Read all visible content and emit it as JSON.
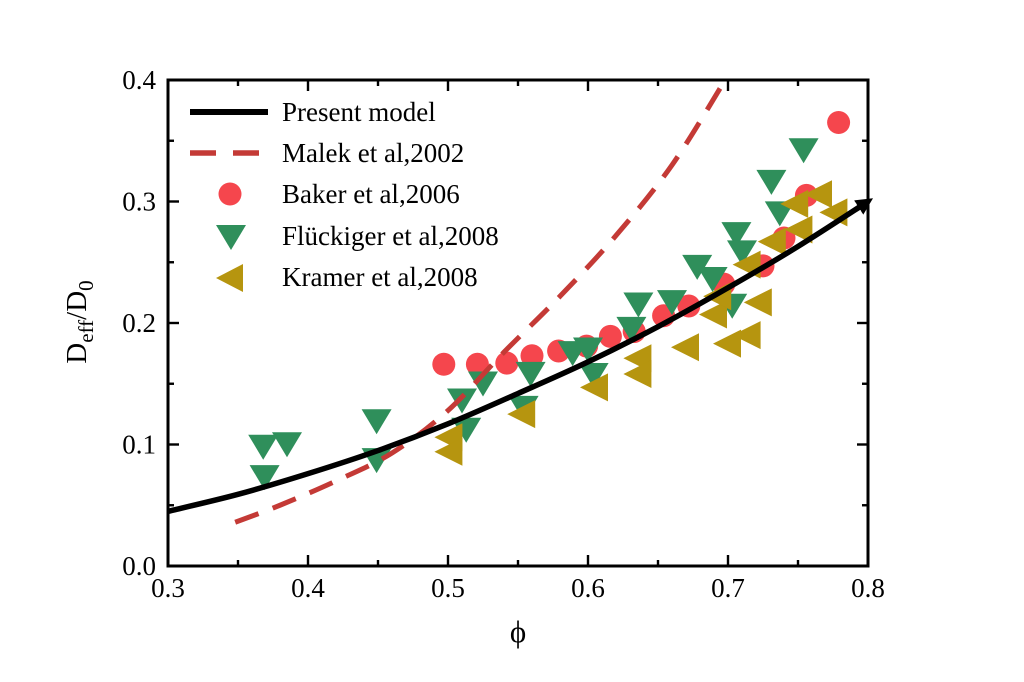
{
  "figure": {
    "background": "#ffffff",
    "frame_color": "#000000"
  },
  "axes": {
    "x": {
      "label": "ϕ",
      "min": 0.3,
      "max": 0.8,
      "major_ticks": [
        0.3,
        0.4,
        0.5,
        0.6,
        0.7,
        0.8
      ],
      "minor_ticks": [
        0.35,
        0.45,
        0.55,
        0.65,
        0.75
      ],
      "tick_labels": [
        "0.3",
        "0.4",
        "0.5",
        "0.6",
        "0.7",
        "0.8"
      ]
    },
    "y": {
      "label_parts": {
        "main1": "D",
        "sub1": "eff",
        "main2": "/D",
        "sub2": "0"
      },
      "min": 0.0,
      "max": 0.4,
      "major_ticks": [
        0.0,
        0.1,
        0.2,
        0.3,
        0.4
      ],
      "minor_ticks": [
        0.05,
        0.15,
        0.25,
        0.35
      ],
      "tick_labels": [
        "0.0",
        "0.1",
        "0.2",
        "0.3",
        "0.4"
      ]
    }
  },
  "legend": {
    "items": [
      {
        "label": "Present model",
        "marker": "solid-line"
      },
      {
        "label": "Malek et al,2002",
        "marker": "dashed-line"
      },
      {
        "label": "Baker et al,2006",
        "marker": "circle"
      },
      {
        "label": "Flückiger et al,2008",
        "marker": "triangle-down"
      },
      {
        "label": "Kramer et al,2008",
        "marker": "triangle-left"
      }
    ]
  },
  "chart_data": {
    "type": "line",
    "title": "",
    "xlabel": "ϕ",
    "ylabel": "Deff/D0",
    "xlim": [
      0.3,
      0.8
    ],
    "ylim": [
      0.0,
      0.4
    ],
    "grid": false,
    "legend_position": "upper-left-inside",
    "series": [
      {
        "name": "Present model",
        "style": "line",
        "color": "#000000",
        "line_width": 5.5,
        "arrow_end": true,
        "points": [
          [
            0.3,
            0.045
          ],
          [
            0.35,
            0.059
          ],
          [
            0.4,
            0.076
          ],
          [
            0.45,
            0.095
          ],
          [
            0.5,
            0.117
          ],
          [
            0.55,
            0.142
          ],
          [
            0.6,
            0.168
          ],
          [
            0.65,
            0.197
          ],
          [
            0.7,
            0.229
          ],
          [
            0.75,
            0.263
          ],
          [
            0.8,
            0.3
          ]
        ]
      },
      {
        "name": "Malek et al,2002",
        "style": "dashed-line",
        "color": "#c43a36",
        "line_width": 5,
        "dash": "25 15",
        "points": [
          [
            0.348,
            0.036
          ],
          [
            0.38,
            0.05
          ],
          [
            0.42,
            0.07
          ],
          [
            0.46,
            0.093
          ],
          [
            0.5,
            0.128
          ],
          [
            0.54,
            0.176
          ],
          [
            0.58,
            0.222
          ],
          [
            0.62,
            0.272
          ],
          [
            0.66,
            0.33
          ],
          [
            0.698,
            0.4
          ]
        ]
      },
      {
        "name": "Baker et al,2006",
        "style": "scatter-circle",
        "color": "#f5464d",
        "marker_size": 23,
        "points": [
          [
            0.497,
            0.166
          ],
          [
            0.521,
            0.166
          ],
          [
            0.542,
            0.167
          ],
          [
            0.56,
            0.173
          ],
          [
            0.579,
            0.177
          ],
          [
            0.599,
            0.181
          ],
          [
            0.616,
            0.189
          ],
          [
            0.633,
            0.193
          ],
          [
            0.654,
            0.206
          ],
          [
            0.672,
            0.214
          ],
          [
            0.697,
            0.232
          ],
          [
            0.725,
            0.247
          ],
          [
            0.74,
            0.27
          ],
          [
            0.756,
            0.305
          ],
          [
            0.779,
            0.365
          ]
        ]
      },
      {
        "name": "Flückiger et al,2008",
        "style": "scatter-triangle-down",
        "color": "#2f8f5b",
        "marker_size": 28,
        "points": [
          [
            0.368,
            0.099
          ],
          [
            0.385,
            0.101
          ],
          [
            0.369,
            0.074
          ],
          [
            0.449,
            0.12
          ],
          [
            0.449,
            0.088
          ],
          [
            0.51,
            0.137
          ],
          [
            0.513,
            0.113
          ],
          [
            0.525,
            0.151
          ],
          [
            0.554,
            0.131
          ],
          [
            0.559,
            0.159
          ],
          [
            0.589,
            0.176
          ],
          [
            0.6,
            0.179
          ],
          [
            0.604,
            0.158
          ],
          [
            0.631,
            0.196
          ],
          [
            0.636,
            0.216
          ],
          [
            0.66,
            0.218
          ],
          [
            0.703,
            0.215
          ],
          [
            0.678,
            0.247
          ],
          [
            0.689,
            0.237
          ],
          [
            0.706,
            0.274
          ],
          [
            0.71,
            0.259
          ],
          [
            0.731,
            0.317
          ],
          [
            0.737,
            0.291
          ],
          [
            0.754,
            0.343
          ]
        ]
      },
      {
        "name": "Kramer et al,2008",
        "style": "scatter-triangle-left",
        "color": "#b6950f",
        "marker_size": 27,
        "points": [
          [
            0.501,
            0.106
          ],
          [
            0.501,
            0.094
          ],
          [
            0.553,
            0.125
          ],
          [
            0.605,
            0.147
          ],
          [
            0.636,
            0.171
          ],
          [
            0.636,
            0.158
          ],
          [
            0.67,
            0.18
          ],
          [
            0.7,
            0.183
          ],
          [
            0.69,
            0.207
          ],
          [
            0.693,
            0.222
          ],
          [
            0.714,
            0.19
          ],
          [
            0.714,
            0.248
          ],
          [
            0.722,
            0.217
          ],
          [
            0.732,
            0.267
          ],
          [
            0.748,
            0.298
          ],
          [
            0.751,
            0.277
          ],
          [
            0.765,
            0.306
          ],
          [
            0.776,
            0.291
          ]
        ]
      }
    ]
  }
}
